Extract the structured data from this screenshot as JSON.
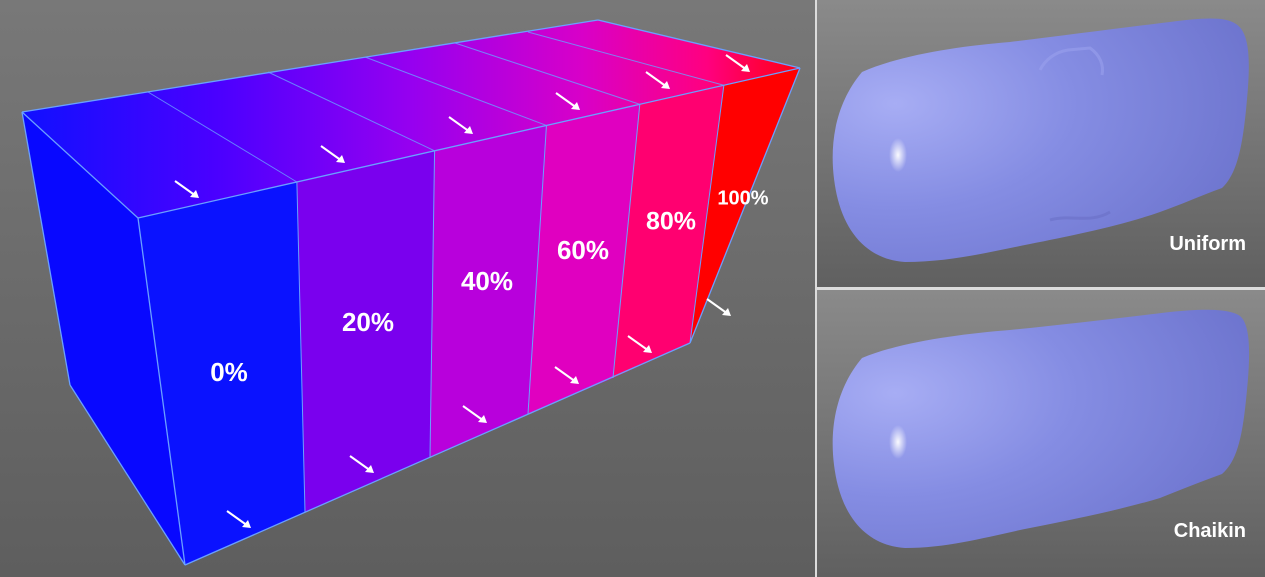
{
  "box": {
    "segments": [
      {
        "label": "0%",
        "value": 0,
        "color": "#0a12ff"
      },
      {
        "label": "20%",
        "value": 20,
        "color": "#7a00ee"
      },
      {
        "label": "40%",
        "value": 40,
        "color": "#b800dc"
      },
      {
        "label": "60%",
        "value": 60,
        "color": "#e000c0"
      },
      {
        "label": "80%",
        "value": 80,
        "color": "#ff0070"
      },
      {
        "label": "100%",
        "value": 100,
        "color": "#ff0000"
      }
    ],
    "side_color": "#0808ff",
    "edge_color": "#6aa0ff",
    "arrow_icon": "arrow-down-right-icon"
  },
  "panels": {
    "top": {
      "caption": "Uniform"
    },
    "bottom": {
      "caption": "Chaikin"
    },
    "shape_color": "#8088e0"
  }
}
